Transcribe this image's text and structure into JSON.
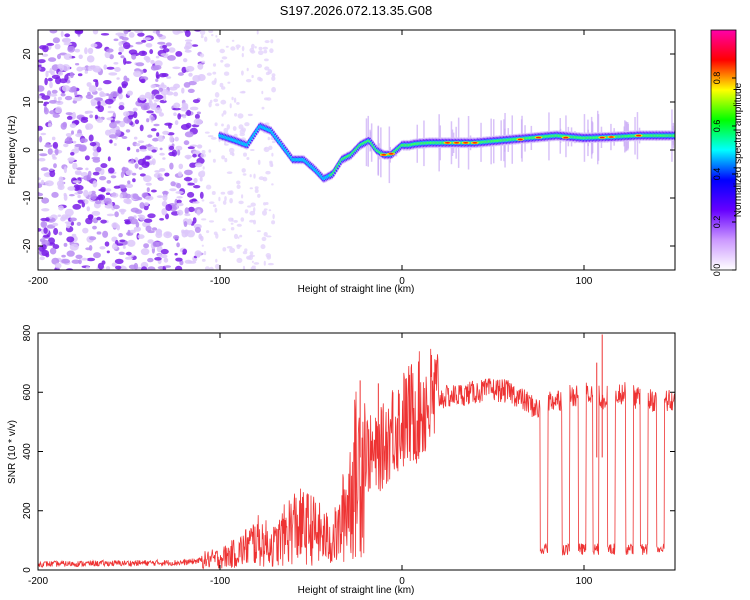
{
  "title": "S197.2026.072.13.35.G08",
  "chart_data": [
    {
      "type": "heatmap",
      "name": "spectrogram",
      "xlabel": "Height of straight line (km)",
      "ylabel": "Frequency (Hz)",
      "xlim": [
        -200,
        150
      ],
      "ylim": [
        -25,
        25
      ],
      "x_ticks": [
        -200,
        -100,
        0,
        100
      ],
      "y_ticks": [
        -20,
        -10,
        0,
        10,
        20
      ],
      "ridge": {
        "x": [
          -100,
          -92,
          -85,
          -78,
          -72,
          -66,
          -60,
          -54,
          -48,
          -43,
          -38,
          -33,
          -28,
          -23,
          -18,
          -14,
          -10,
          -6,
          -3,
          0,
          4,
          8,
          15,
          25,
          40,
          55,
          70,
          85,
          100,
          115,
          130,
          150
        ],
        "y": [
          3,
          2,
          1,
          5,
          4,
          1,
          -2,
          -2,
          -4,
          -6,
          -5,
          -2,
          -1,
          1,
          2,
          0,
          -1,
          -1,
          0,
          1,
          1,
          1.3,
          1.5,
          1.5,
          1.5,
          2,
          2.5,
          3,
          2.5,
          2.7,
          3,
          3
        ]
      },
      "colorbar": {
        "label": "Normalized spectral amplitude",
        "range": [
          0,
          1
        ],
        "ticks": [
          "0.0",
          "0.2",
          "0.4",
          "0.6",
          "0.8"
        ],
        "colors": [
          "#ffffff",
          "#cc99ff",
          "#6600ff",
          "#0000ff",
          "#00ffff",
          "#00ff00",
          "#ffff00",
          "#ff0000",
          "#ff00aa"
        ]
      }
    },
    {
      "type": "line",
      "name": "snr",
      "xlabel": "Height of straight line (km)",
      "ylabel": "SNR (10 * v/v)",
      "xlim": [
        -200,
        150
      ],
      "ylim": [
        0,
        800
      ],
      "x_ticks": [
        -200,
        -100,
        0,
        100
      ],
      "y_ticks": [
        0,
        200,
        400,
        600,
        800
      ],
      "color": "#ee3333",
      "envelope": {
        "x": [
          -200,
          -120,
          -100,
          -90,
          -80,
          -70,
          -60,
          -50,
          -40,
          -35,
          -30,
          -25,
          -20,
          -15,
          -10,
          -5,
          0,
          10,
          20,
          30,
          40,
          50,
          60,
          70,
          75,
          80,
          90,
          100,
          110,
          120,
          130,
          140,
          150
        ],
        "y": [
          20,
          25,
          40,
          60,
          100,
          80,
          150,
          140,
          100,
          120,
          230,
          330,
          400,
          380,
          420,
          480,
          500,
          550,
          580,
          590,
          600,
          610,
          600,
          560,
          540,
          570,
          580,
          600,
          580,
          600,
          580,
          570,
          570
        ]
      },
      "dropouts": [
        [
          76,
          80
        ],
        [
          88,
          92
        ],
        [
          97,
          101
        ],
        [
          105,
          108
        ],
        [
          113,
          117
        ],
        [
          123,
          127
        ],
        [
          131,
          135
        ],
        [
          140,
          144
        ]
      ],
      "dropout_level": 70
    }
  ]
}
